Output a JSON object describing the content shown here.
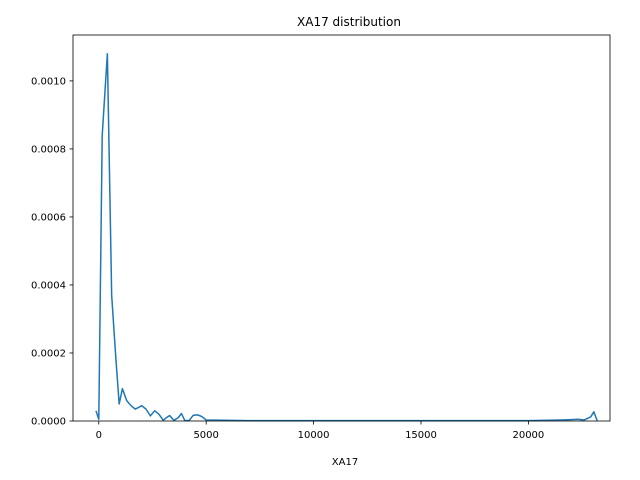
{
  "chart_data": {
    "type": "line",
    "title": "XA17 distribution",
    "xlabel": "XA17",
    "ylabel": "",
    "xlim": [
      -1200,
      23800
    ],
    "ylim": [
      0,
      0.001135
    ],
    "grid": false,
    "legend": "none",
    "xticks": [
      0,
      5000,
      10000,
      15000,
      20000
    ],
    "xtick_labels": [
      "0",
      "5000",
      "10000",
      "15000",
      "20000"
    ],
    "yticks": [
      0,
      0.0002,
      0.0004,
      0.0006,
      0.0008,
      0.001
    ],
    "ytick_labels": [
      "0.0000",
      "0.0002",
      "0.0004",
      "0.0006",
      "0.0008",
      "0.0010"
    ],
    "series": [
      {
        "color": "#1f77b4",
        "x": [
          -130,
          0,
          160,
          400,
          600,
          800,
          950,
          1100,
          1300,
          1500,
          1700,
          1850,
          2000,
          2200,
          2400,
          2600,
          2800,
          3000,
          3150,
          3300,
          3500,
          3700,
          3850,
          4000,
          4200,
          4400,
          4600,
          4800,
          5000,
          7000,
          10000,
          15000,
          20000,
          21500,
          22000,
          22300,
          22600,
          22900,
          23050,
          23200
        ],
        "y": [
          3e-05,
          5e-06,
          0.00084,
          0.00108,
          0.00037,
          0.00018,
          5e-05,
          9.5e-05,
          6e-05,
          4.5e-05,
          3.5e-05,
          4e-05,
          4.5e-05,
          3.5e-05,
          1.5e-05,
          3e-05,
          2e-05,
          2e-06,
          1e-05,
          1.6e-05,
          2e-06,
          1e-05,
          2.2e-05,
          2e-06,
          1e-06,
          1.7e-05,
          1.8e-05,
          1.3e-05,
          3e-06,
          1e-06,
          1e-06,
          1e-06,
          1e-06,
          3e-06,
          4e-06,
          5e-06,
          3e-06,
          1.2e-05,
          2.7e-05,
          1e-06
        ]
      }
    ]
  }
}
